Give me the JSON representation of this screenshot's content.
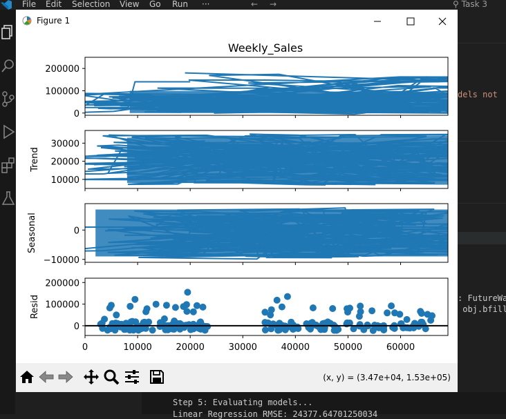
{
  "menubar": {
    "items": [
      "File",
      "Edit",
      "Selection",
      "View",
      "Go",
      "Run",
      "···"
    ],
    "search_text": "Task 3"
  },
  "window": {
    "title": "Figure 1",
    "coords": "(x, y) = (3.47e+04, 1.53e+05)"
  },
  "figure": {
    "suptitle": "Weekly_Sales",
    "xticks": [
      "0",
      "10000",
      "20000",
      "30000",
      "40000",
      "50000",
      "60000"
    ],
    "line_color": "#1f77b4"
  },
  "chart_data": [
    {
      "type": "line",
      "name": "observed",
      "ylabel": "",
      "title": "Weekly_Sales",
      "yticks": [
        "0",
        "100000",
        "200000"
      ],
      "xlim": [
        0,
        69000
      ],
      "ylim": [
        -10000,
        250000
      ]
    },
    {
      "type": "line",
      "name": "trend",
      "ylabel": "Trend",
      "yticks": [
        "10000",
        "20000",
        "30000"
      ],
      "xlim": [
        0,
        69000
      ],
      "ylim": [
        5000,
        37000
      ]
    },
    {
      "type": "line",
      "name": "seasonal",
      "ylabel": "Seasonal",
      "yticks": [
        "0",
        "−10000"
      ],
      "xlim": [
        0,
        69000
      ],
      "ylim": [
        -11000,
        9000
      ]
    },
    {
      "type": "scatter",
      "name": "resid",
      "ylabel": "Resid",
      "yticks": [
        "0",
        "100000",
        "200000"
      ],
      "xlim": [
        0,
        69000
      ],
      "ylim": [
        -45000,
        220000
      ],
      "baseline": 0
    }
  ],
  "editor": {
    "line1": "dels not",
    "line2": ": FutureWa",
    "line3": " obj.bfill"
  },
  "terminal": {
    "line1": "Step 5: Evaluating models...",
    "line2": "Linear Regression RMSE: 24377.64701250034"
  }
}
